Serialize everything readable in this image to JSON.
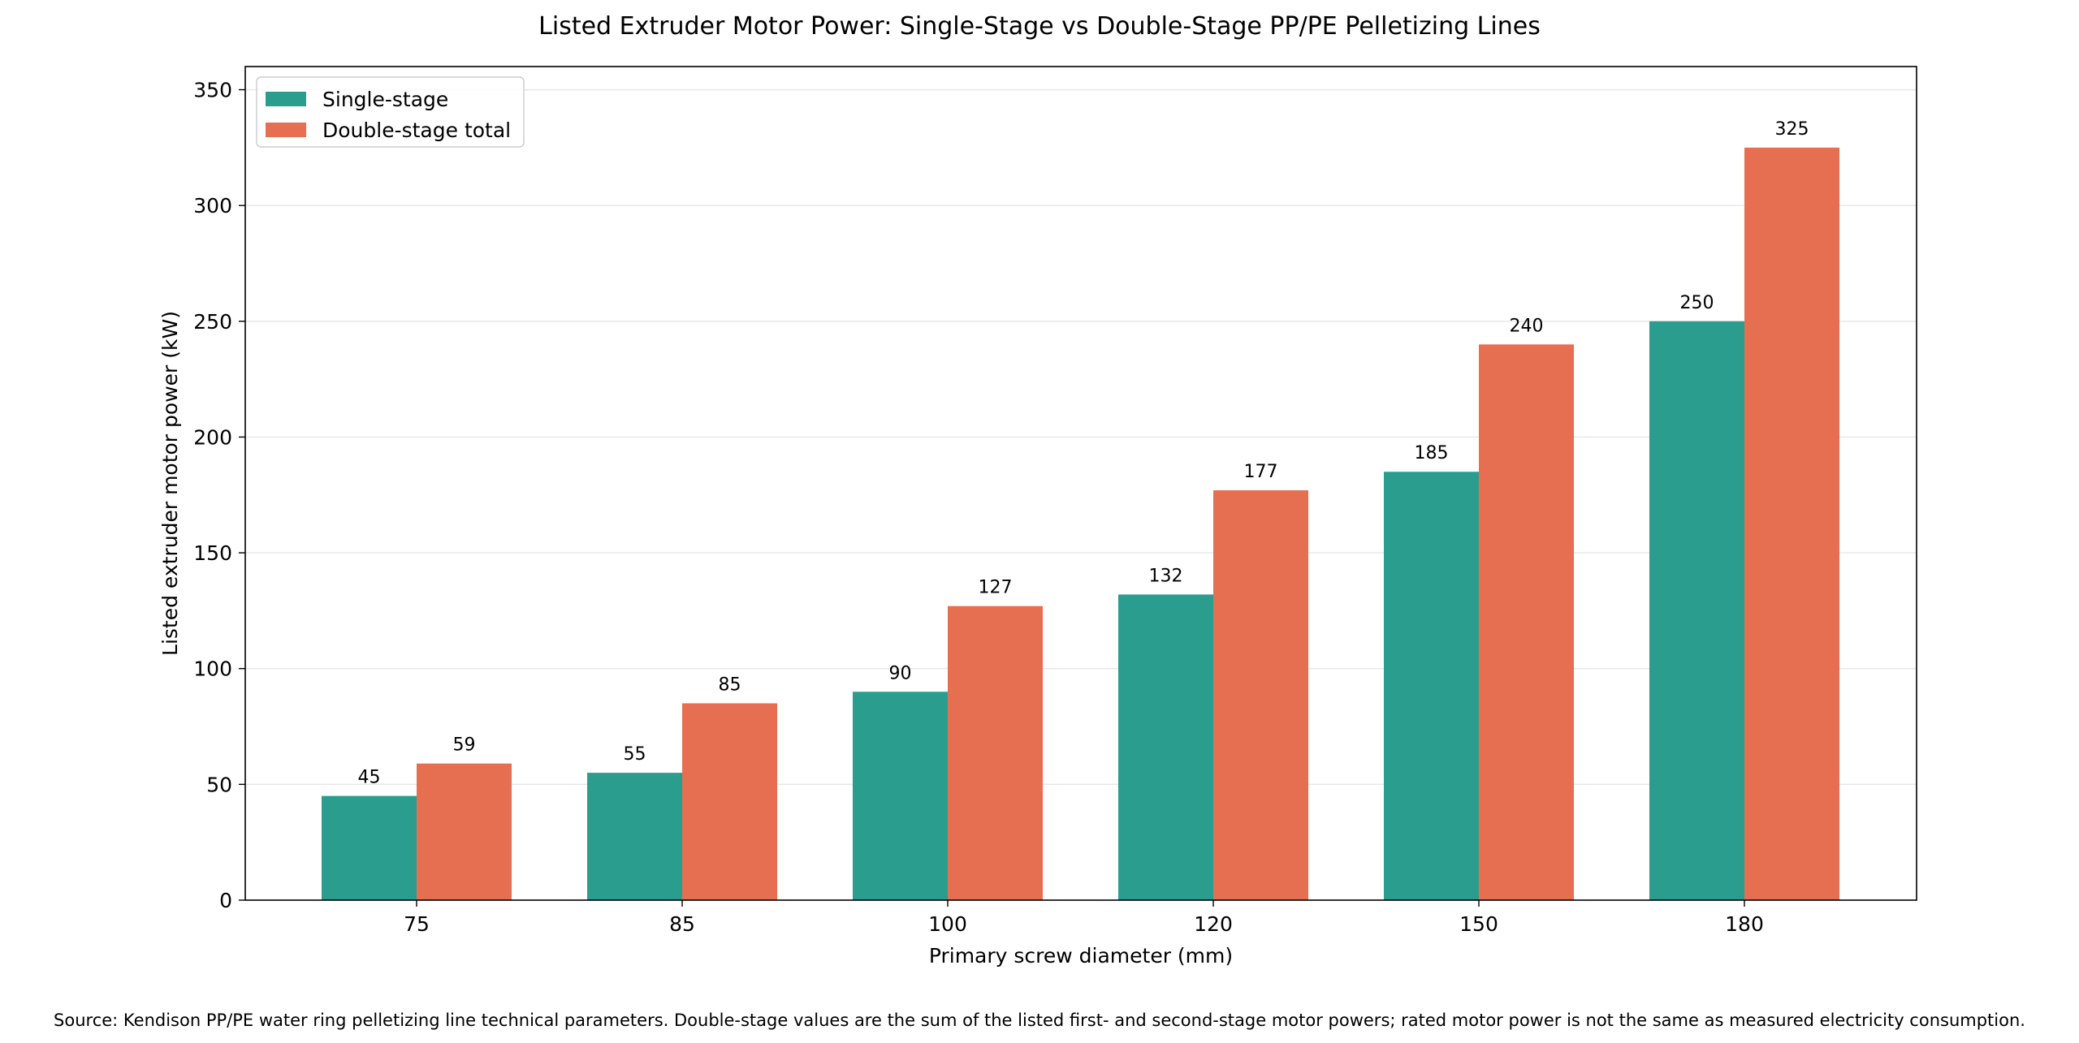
{
  "chart_data": {
    "type": "bar",
    "title": "Listed Extruder Motor Power: Single-Stage vs Double-Stage PP/PE Pelletizing Lines",
    "xlabel": "Primary screw diameter (mm)",
    "ylabel": "Listed extruder motor power (kW)",
    "categories": [
      "75",
      "85",
      "100",
      "120",
      "150",
      "180"
    ],
    "series": [
      {
        "name": "Single-stage",
        "color": "#2a9d8f",
        "values": [
          45,
          55,
          90,
          132,
          185,
          250
        ]
      },
      {
        "name": "Double-stage total",
        "color": "#e76f51",
        "values": [
          59,
          85,
          127,
          177,
          240,
          325
        ]
      }
    ],
    "ylim": [
      0,
      360
    ],
    "yticks": [
      0,
      50,
      100,
      150,
      200,
      250,
      300,
      350
    ],
    "grid": "horizontal",
    "legend_position": "top-left",
    "data_labels": true
  },
  "source_note": "Source: Kendison PP/PE water ring pelletizing line technical parameters. Double-stage values are the sum of the listed first- and second-stage motor powers; rated motor power is not the same as measured electricity consumption."
}
